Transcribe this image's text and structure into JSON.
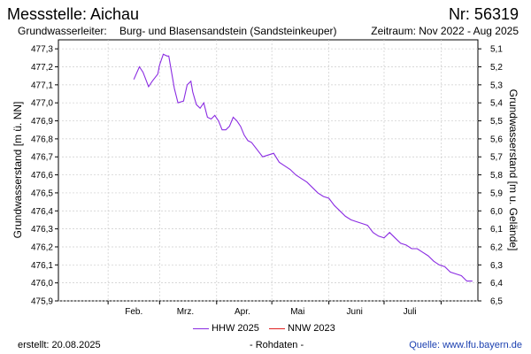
{
  "header": {
    "title": "Messstelle: Aichau",
    "number": "Nr: 56319",
    "aquifer_label": "Grundwasserleiter:",
    "aquifer_value": "Burg- und Blasensandstein (Sandsteinkeuper)",
    "period": "Zeitraum: Nov 2022 - Aug 2025"
  },
  "footer": {
    "created": "erstellt:  20.08.2025",
    "raw": "- Rohdaten -",
    "source": "Quelle:  www.lfu.bayern.de"
  },
  "colors": {
    "hhw": "#8a2be2",
    "nnw": "#e02020",
    "grid": "#cccccc"
  },
  "chart_data": {
    "type": "line",
    "ylabel_left": "Grundwasserstand [m ü. NN]",
    "ylabel_right": "Grundwasserstand [m u. Gelände]",
    "ylim": [
      475.9,
      477.35
    ],
    "yticks_left": [
      "477,3",
      "477,2",
      "477,1",
      "477,0",
      "476,9",
      "476,8",
      "476,7",
      "476,6",
      "476,5",
      "476,4",
      "476,3",
      "476,2",
      "476,1",
      "476,0",
      "475,9"
    ],
    "yticks_right": [
      "5,1",
      "5,2",
      "5,3",
      "5,4",
      "5,5",
      "5,6",
      "5,7",
      "5,8",
      "5,9",
      "6,0",
      "6,1",
      "6,2",
      "6,3",
      "6,4",
      "6,5"
    ],
    "x_ticks": [
      "Feb.",
      "Mrz.",
      "Apr.",
      "Mai",
      "Juni",
      "Juli"
    ],
    "grid": true,
    "legend_position": "bottom",
    "series": [
      {
        "name": "HHW 2025",
        "color": "#8a2be2",
        "x": [
          "2025-02-15",
          "2025-02-18",
          "2025-02-20",
          "2025-02-23",
          "2025-02-25",
          "2025-02-28",
          "2025-03-01",
          "2025-03-03",
          "2025-03-05",
          "2025-03-06",
          "2025-03-07",
          "2025-03-09",
          "2025-03-11",
          "2025-03-14",
          "2025-03-16",
          "2025-03-18",
          "2025-03-19",
          "2025-03-21",
          "2025-03-23",
          "2025-03-25",
          "2025-03-27",
          "2025-03-29",
          "2025-03-31",
          "2025-04-02",
          "2025-04-04",
          "2025-04-06",
          "2025-04-08",
          "2025-04-10",
          "2025-04-12",
          "2025-04-14",
          "2025-04-16",
          "2025-04-18",
          "2025-04-20",
          "2025-04-23",
          "2025-04-26",
          "2025-04-29",
          "2025-05-02",
          "2025-05-05",
          "2025-05-08",
          "2025-05-11",
          "2025-05-14",
          "2025-05-17",
          "2025-05-20",
          "2025-05-23",
          "2025-05-26",
          "2025-05-29",
          "2025-06-01",
          "2025-06-04",
          "2025-06-07",
          "2025-06-10",
          "2025-06-13",
          "2025-06-16",
          "2025-06-19",
          "2025-06-22",
          "2025-06-25",
          "2025-06-28",
          "2025-07-01",
          "2025-07-04",
          "2025-07-07",
          "2025-07-10",
          "2025-07-13",
          "2025-07-16",
          "2025-07-19",
          "2025-07-22",
          "2025-07-25",
          "2025-07-28",
          "2025-07-31",
          "2025-08-03",
          "2025-08-06",
          "2025-08-09",
          "2025-08-12",
          "2025-08-15",
          "2025-08-18"
        ],
        "y": [
          477.13,
          477.2,
          477.17,
          477.09,
          477.12,
          477.16,
          477.21,
          477.27,
          477.26,
          477.26,
          477.2,
          477.08,
          477.0,
          477.01,
          477.1,
          477.12,
          477.06,
          476.99,
          476.97,
          477.0,
          476.92,
          476.91,
          476.93,
          476.9,
          476.85,
          476.85,
          476.87,
          476.92,
          476.9,
          476.87,
          476.82,
          476.79,
          476.78,
          476.74,
          476.7,
          476.71,
          476.72,
          476.67,
          476.65,
          476.63,
          476.6,
          476.58,
          476.56,
          476.53,
          476.5,
          476.48,
          476.47,
          476.43,
          476.4,
          476.37,
          476.35,
          476.34,
          476.33,
          476.32,
          476.28,
          476.26,
          476.25,
          476.28,
          476.25,
          476.22,
          476.21,
          476.19,
          476.19,
          476.17,
          476.15,
          476.12,
          476.1,
          476.09,
          476.06,
          476.05,
          476.04,
          476.01,
          476.01
        ]
      },
      {
        "name": "NNW 2023",
        "color": "#e02020",
        "x": [],
        "y": []
      }
    ]
  }
}
